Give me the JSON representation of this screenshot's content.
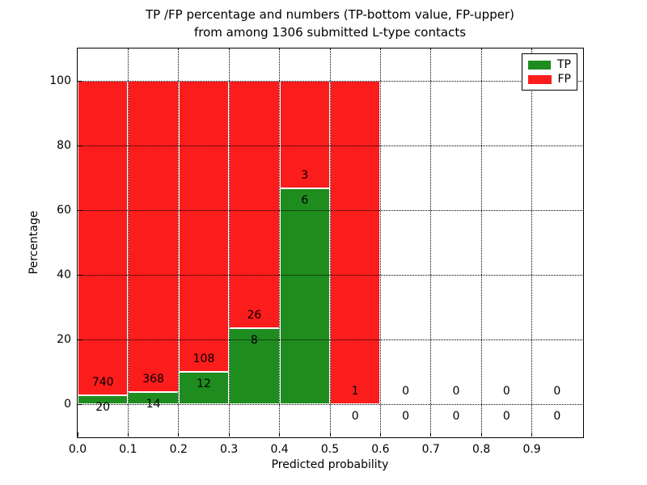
{
  "figure": {
    "title_line1": "TP /FP percentage and numbers (TP-bottom value, FP-upper)",
    "title_line2": "from among 1306 submitted L-type contacts",
    "xlabel": "Predicted probability",
    "ylabel": "Percentage"
  },
  "legend": {
    "items": [
      {
        "label": "TP",
        "color": "#1f8c1f"
      },
      {
        "label": "FP",
        "color": "#fb1c1c"
      }
    ]
  },
  "chart_data": {
    "type": "bar",
    "stacked": true,
    "title": "TP /FP percentage and numbers (TP-bottom value, FP-upper) from among 1306 submitted L-type contacts",
    "total_submitted_contacts": 1306,
    "xlabel": "Predicted probability",
    "ylabel": "Percentage",
    "xlim": [
      0.0,
      1.0
    ],
    "ylim": [
      -10,
      110
    ],
    "grid": "dotted both axes",
    "legend_position": "upper right",
    "series_colors": {
      "TP": "#1f8c1f",
      "FP": "#fb1c1c"
    },
    "bar_edge_color": "#ffffff",
    "yticks": [
      0,
      20,
      40,
      60,
      80,
      100
    ],
    "xtick_values": [
      0.0,
      0.1,
      0.2,
      0.3,
      0.4,
      0.5,
      0.6,
      0.7,
      0.8,
      0.9
    ],
    "xtick_labels": [
      "0.0",
      "0.1",
      "0.2",
      "0.3",
      "0.4",
      "0.5",
      "0.6",
      "0.7",
      "0.8",
      "0.9"
    ],
    "bins": [
      {
        "x0": 0.0,
        "x1": 0.1,
        "tp": 20,
        "fp": 740,
        "tp_pct": 2.63,
        "fp_pct": 97.37,
        "has_bar": true
      },
      {
        "x0": 0.1,
        "x1": 0.2,
        "tp": 14,
        "fp": 368,
        "tp_pct": 3.66,
        "fp_pct": 96.34,
        "has_bar": true
      },
      {
        "x0": 0.2,
        "x1": 0.3,
        "tp": 12,
        "fp": 108,
        "tp_pct": 10.0,
        "fp_pct": 90.0,
        "has_bar": true
      },
      {
        "x0": 0.3,
        "x1": 0.4,
        "tp": 8,
        "fp": 26,
        "tp_pct": 23.53,
        "fp_pct": 76.47,
        "has_bar": true
      },
      {
        "x0": 0.4,
        "x1": 0.5,
        "tp": 6,
        "fp": 3,
        "tp_pct": 66.67,
        "fp_pct": 33.33,
        "has_bar": true
      },
      {
        "x0": 0.5,
        "x1": 0.6,
        "tp": 0,
        "fp": 1,
        "tp_pct": 0.0,
        "fp_pct": 100.0,
        "has_bar": true
      },
      {
        "x0": 0.6,
        "x1": 0.7,
        "tp": 0,
        "fp": 0,
        "tp_pct": 0.0,
        "fp_pct": 0.0,
        "has_bar": false
      },
      {
        "x0": 0.7,
        "x1": 0.8,
        "tp": 0,
        "fp": 0,
        "tp_pct": 0.0,
        "fp_pct": 0.0,
        "has_bar": false
      },
      {
        "x0": 0.8,
        "x1": 0.9,
        "tp": 0,
        "fp": 0,
        "tp_pct": 0.0,
        "fp_pct": 0.0,
        "has_bar": false
      },
      {
        "x0": 0.9,
        "x1": 1.0,
        "tp": 0,
        "fp": 0,
        "tp_pct": 0.0,
        "fp_pct": 0.0,
        "has_bar": false
      }
    ]
  }
}
